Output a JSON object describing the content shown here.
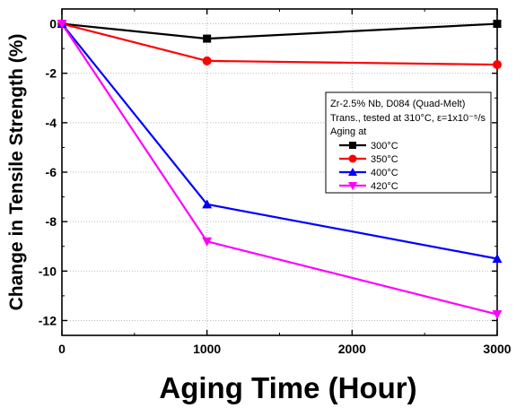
{
  "chart_data": {
    "type": "line",
    "xlabel": "Aging Time (Hour)",
    "ylabel": "Change in Tensile Strength (%)",
    "xlim": [
      0,
      3000
    ],
    "ylim": [
      -12.6,
      0.6
    ],
    "x_ticks": [
      0,
      1000,
      2000,
      3000
    ],
    "y_ticks": [
      0,
      -2,
      -4,
      -6,
      -8,
      -10,
      -12
    ],
    "grid": true,
    "legend_placement": "right",
    "legend_header": [
      "Zr-2.5% Nb, D084 (Quad-Melt)",
      "Trans., tested at 310°C, ε=1x10⁻⁵/s",
      "Aging at"
    ],
    "x": [
      0,
      1000,
      3000
    ],
    "series": [
      {
        "name": "300°C",
        "values": [
          0,
          -0.6,
          0.0
        ],
        "color": "#000000",
        "marker": "square"
      },
      {
        "name": "350°C",
        "values": [
          0,
          -1.5,
          -1.65
        ],
        "color": "#ff0000",
        "marker": "circle"
      },
      {
        "name": "400°C",
        "values": [
          0,
          -7.3,
          -9.5
        ],
        "color": "#0000ff",
        "marker": "triangle-up"
      },
      {
        "name": "420°C",
        "values": [
          0,
          -8.8,
          -11.75
        ],
        "color": "#ff00ff",
        "marker": "triangle-down"
      }
    ]
  }
}
